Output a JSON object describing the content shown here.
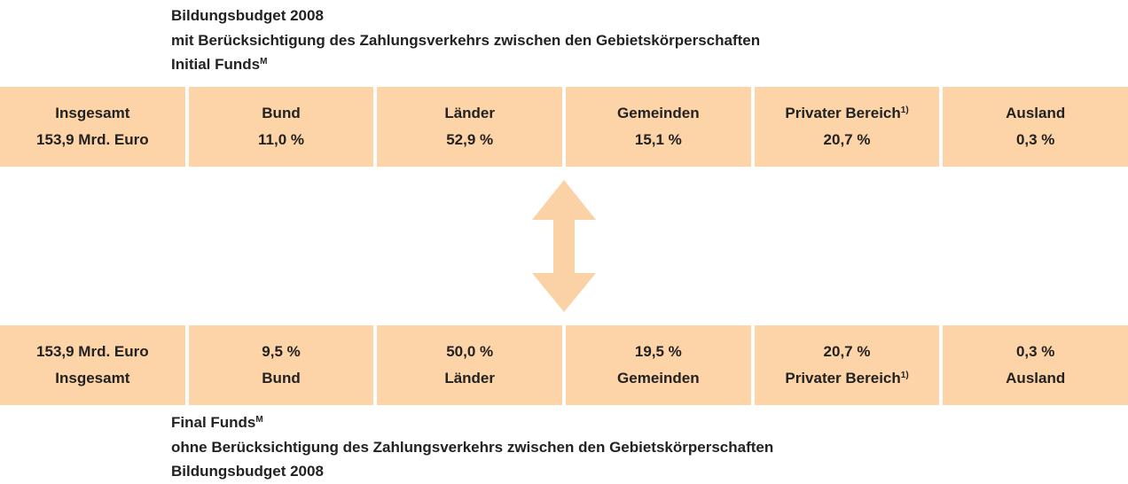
{
  "top_heading": {
    "title": "Bildungsbudget 2008",
    "subtitle": "mit Berücksichtigung des Zahlungsverkehrs zwischen den Gebietskörperschaften",
    "label": "Initial Funds",
    "label_sup": "M"
  },
  "initial_row": [
    {
      "name": "Insgesamt",
      "value": "153,9 Mrd. Euro"
    },
    {
      "name": "Bund",
      "value": "11,0 %"
    },
    {
      "name": "Länder",
      "value": "52,9 %"
    },
    {
      "name": "Gemeinden",
      "value": "15,1 %"
    },
    {
      "name": "Privater Bereich",
      "sup": "1)",
      "value": "20,7 %"
    },
    {
      "name": "Ausland",
      "value": "0,3 %"
    }
  ],
  "final_row": [
    {
      "value": "153,9 Mrd. Euro",
      "name": "Insgesamt"
    },
    {
      "value": "9,5 %",
      "name": "Bund"
    },
    {
      "value": "50,0 %",
      "name": "Länder"
    },
    {
      "value": "19,5 %",
      "name": "Gemeinden"
    },
    {
      "value": "20,7 %",
      "name": "Privater Bereich",
      "sup": "1)"
    },
    {
      "value": "0,3 %",
      "name": "Ausland"
    }
  ],
  "bottom_heading": {
    "label": "Final Funds",
    "label_sup": "M",
    "subtitle": "ohne Berücksichtigung des Zahlungsverkehrs zwischen den Gebietskörperschaften",
    "title": "Bildungsbudget 2008"
  }
}
